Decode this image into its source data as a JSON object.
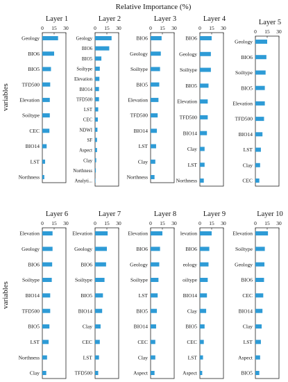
{
  "figure": {
    "title": "Relative Importance (%)",
    "ylabel": "variables",
    "bar_color": "#2e9bd6",
    "axis_ticks": [
      "0",
      "15",
      "30"
    ]
  },
  "chart_data": [
    {
      "type": "bar",
      "orientation": "horizontal",
      "title": "Layer 1",
      "xlim": [
        0,
        30
      ],
      "categories": [
        "Geology",
        "BIO6",
        "BIO5",
        "TFD500",
        "Elevation",
        "Soiltype",
        "CEC",
        "BIO14",
        "LST",
        "Northness"
      ],
      "values": [
        20,
        15,
        11,
        10,
        9.5,
        9.5,
        9,
        5.5,
        3.5,
        2.5
      ]
    },
    {
      "type": "bar",
      "orientation": "horizontal",
      "title": "Layer 2",
      "xlim": [
        0,
        30
      ],
      "categories": [
        "Geology",
        "BIO6",
        "BIO5",
        "Soiltype",
        "Elevation",
        "BIO14",
        "TFD500",
        "LST",
        "CEC",
        "NDWI",
        "SF",
        "Aspect",
        "Clay",
        "Northness",
        "Analyti..."
      ],
      "values": [
        21,
        18,
        8,
        6,
        5.5,
        5,
        5,
        4,
        3.5,
        3,
        2.5,
        2.5,
        1.5,
        1,
        0.5
      ]
    },
    {
      "type": "bar",
      "orientation": "horizontal",
      "title": "Layer 3",
      "xlim": [
        0,
        30
      ],
      "categories": [
        "BIO6",
        "Geology",
        "Soiltype",
        "BIO5",
        "Elevation",
        "TFD500",
        "BIO14",
        "LST",
        "Clay",
        "Northness"
      ],
      "values": [
        14,
        13,
        12,
        11,
        10,
        9,
        8,
        7,
        6,
        5
      ]
    },
    {
      "type": "bar",
      "orientation": "horizontal",
      "title": "Layer 4",
      "xlim": [
        0,
        30
      ],
      "categories": [
        "BIO6",
        "Geology",
        "Soiltype",
        "BIO5",
        "Elevation",
        "TFD500",
        "BIO14",
        "Clay",
        "LST",
        "Northness"
      ],
      "values": [
        15,
        14,
        14,
        11,
        10,
        10,
        9,
        6,
        6,
        5
      ]
    },
    {
      "type": "bar",
      "orientation": "horizontal",
      "title": "Layer 5",
      "xlim": [
        0,
        30
      ],
      "categories": [
        "Geology",
        "BIO6",
        "Soiltype",
        "BIO5",
        "Elevation",
        "TFD500",
        "BIO14",
        "LST",
        "Clay",
        "CEC"
      ],
      "values": [
        15,
        14,
        13,
        12,
        12,
        11,
        9,
        7,
        6,
        5
      ]
    },
    {
      "type": "bar",
      "orientation": "horizontal",
      "title": "Layer 6",
      "xlim": [
        0,
        30
      ],
      "categories": [
        "Elevation",
        "Geology",
        "BIO6",
        "Soiltype",
        "BIO14",
        "TFD500",
        "BIO5",
        "LST",
        "Northness",
        "Clay"
      ],
      "values": [
        13,
        13,
        12.5,
        12,
        10,
        10,
        9,
        8,
        6,
        5
      ]
    },
    {
      "type": "bar",
      "orientation": "horizontal",
      "title": "Layer 7",
      "xlim": [
        0,
        30
      ],
      "categories": [
        "Elevation",
        "Geology",
        "BIO6",
        "Soiltype",
        "BIO5",
        "BIO14",
        "Clay",
        "CEC",
        "LST",
        "TFD500"
      ],
      "values": [
        16,
        15,
        14,
        12,
        10,
        9,
        7,
        6,
        5,
        4
      ]
    },
    {
      "type": "bar",
      "orientation": "horizontal",
      "title": "Layer 8",
      "xlim": [
        0,
        30
      ],
      "categories": [
        "Elevation",
        "BIO6",
        "Geology",
        "Soiltype",
        "LST",
        "BIO5",
        "BIO14",
        "CEC",
        "Clay",
        "Aspect"
      ],
      "values": [
        15,
        12,
        11,
        10,
        9,
        8,
        7,
        6,
        6,
        5
      ]
    },
    {
      "type": "bar",
      "orientation": "horizontal",
      "title": "Layer 9",
      "xlim": [
        0,
        30
      ],
      "categories": [
        "levation",
        "BIO6",
        "eology",
        "oiltype",
        "BIO14",
        "Clay",
        "BIO5",
        "CEC",
        "LST",
        "Aspect"
      ],
      "values": [
        15,
        12,
        11,
        10,
        9,
        8,
        6,
        5,
        4,
        3
      ]
    },
    {
      "type": "bar",
      "orientation": "horizontal",
      "title": "Layer 10",
      "xlim": [
        0,
        30
      ],
      "categories": [
        "Elevation",
        "Soiltype",
        "Geology",
        "BIO6",
        "CEC",
        "BIO14",
        "Clay",
        "LST",
        "Aspect",
        "BIO5"
      ],
      "values": [
        16,
        12,
        11.5,
        11,
        10,
        9,
        8,
        7,
        6,
        5
      ]
    }
  ]
}
